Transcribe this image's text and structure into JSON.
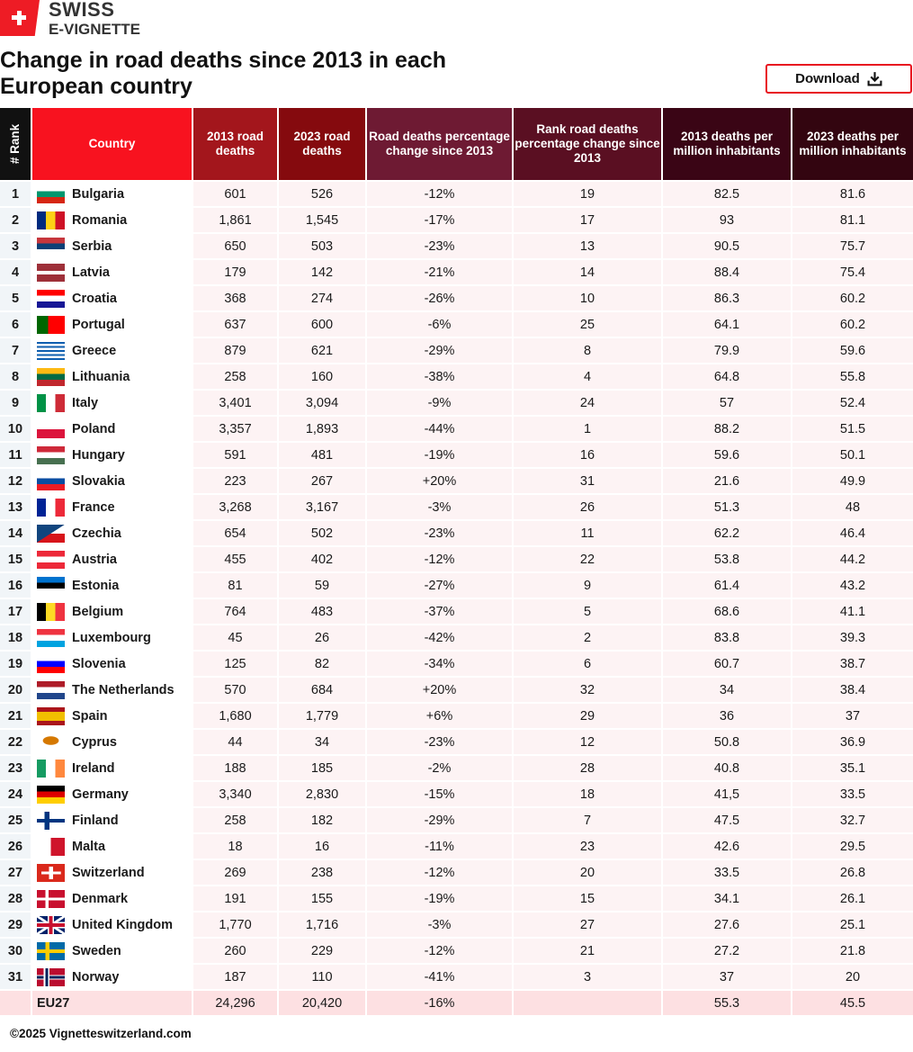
{
  "brand": {
    "line1": "SWISS",
    "line2": "E-VIGNETTE",
    "accent": "#ee1c25"
  },
  "title": "Change in road deaths since 2013 in each European country",
  "download_label": "Download",
  "headers": [
    "# Rank",
    "Country",
    "2013 road deaths",
    "2023 road deaths",
    "Road deaths percentage change since 2013",
    "Rank road deaths percentage change since 2013",
    "2013 deaths per million inhabitants",
    "2023 deaths per million inhabitants"
  ],
  "header_colors": [
    "#111111",
    "#f8121f",
    "#a3161c",
    "#850a0e",
    "#6e1a33",
    "#5a0f22",
    "#3a0515",
    "#330510"
  ],
  "rows": [
    [
      "1",
      "Bulgaria",
      "601",
      "526",
      "-12%",
      "19",
      "82.5",
      "81.6"
    ],
    [
      "2",
      "Romania",
      "1,861",
      "1,545",
      "-17%",
      "17",
      "93",
      "81.1"
    ],
    [
      "3",
      "Serbia",
      "650",
      "503",
      "-23%",
      "13",
      "90.5",
      "75.7"
    ],
    [
      "4",
      "Latvia",
      "179",
      "142",
      "-21%",
      "14",
      "88.4",
      "75.4"
    ],
    [
      "5",
      "Croatia",
      "368",
      "274",
      "-26%",
      "10",
      "86.3",
      "60.2"
    ],
    [
      "6",
      "Portugal",
      "637",
      "600",
      "-6%",
      "25",
      "64.1",
      "60.2"
    ],
    [
      "7",
      "Greece",
      "879",
      "621",
      "-29%",
      "8",
      "79.9",
      "59.6"
    ],
    [
      "8",
      "Lithuania",
      "258",
      "160",
      "-38%",
      "4",
      "64.8",
      "55.8"
    ],
    [
      "9",
      "Italy",
      "3,401",
      "3,094",
      "-9%",
      "24",
      "57",
      "52.4"
    ],
    [
      "10",
      "Poland",
      "3,357",
      "1,893",
      "-44%",
      "1",
      "88.2",
      "51.5"
    ],
    [
      "11",
      "Hungary",
      "591",
      "481",
      "-19%",
      "16",
      "59.6",
      "50.1"
    ],
    [
      "12",
      "Slovakia",
      "223",
      "267",
      "+20%",
      "31",
      "21.6",
      "49.9"
    ],
    [
      "13",
      "France",
      "3,268",
      "3,167",
      "-3%",
      "26",
      "51.3",
      "48"
    ],
    [
      "14",
      "Czechia",
      "654",
      "502",
      "-23%",
      "11",
      "62.2",
      "46.4"
    ],
    [
      "15",
      "Austria",
      "455",
      "402",
      "-12%",
      "22",
      "53.8",
      "44.2"
    ],
    [
      "16",
      "Estonia",
      "81",
      "59",
      "-27%",
      "9",
      "61.4",
      "43.2"
    ],
    [
      "17",
      "Belgium",
      "764",
      "483",
      "-37%",
      "5",
      "68.6",
      "41.1"
    ],
    [
      "18",
      "Luxembourg",
      "45",
      "26",
      "-42%",
      "2",
      "83.8",
      "39.3"
    ],
    [
      "19",
      "Slovenia",
      "125",
      "82",
      "-34%",
      "6",
      "60.7",
      "38.7"
    ],
    [
      "20",
      "The Netherlands",
      "570",
      "684",
      "+20%",
      "32",
      "34",
      "38.4"
    ],
    [
      "21",
      "Spain",
      "1,680",
      "1,779",
      "+6%",
      "29",
      "36",
      "37"
    ],
    [
      "22",
      "Cyprus",
      "44",
      "34",
      "-23%",
      "12",
      "50.8",
      "36.9"
    ],
    [
      "23",
      "Ireland",
      "188",
      "185",
      "-2%",
      "28",
      "40.8",
      "35.1"
    ],
    [
      "24",
      "Germany",
      "3,340",
      "2,830",
      "-15%",
      "18",
      "41,5",
      "33.5"
    ],
    [
      "25",
      "Finland",
      "258",
      "182",
      "-29%",
      "7",
      "47.5",
      "32.7"
    ],
    [
      "26",
      "Malta",
      "18",
      "16",
      "-11%",
      "23",
      "42.6",
      "29.5"
    ],
    [
      "27",
      "Switzerland",
      "269",
      "238",
      "-12%",
      "20",
      "33.5",
      "26.8"
    ],
    [
      "28",
      "Denmark",
      "191",
      "155",
      "-19%",
      "15",
      "34.1",
      "26.1"
    ],
    [
      "29",
      "United Kingdom",
      "1,770",
      "1,716",
      "-3%",
      "27",
      "27.6",
      "25.1"
    ],
    [
      "30",
      "Sweden",
      "260",
      "229",
      "-12%",
      "21",
      "27.2",
      "21.8"
    ],
    [
      "31",
      "Norway",
      "187",
      "110",
      "-41%",
      "3",
      "37",
      "20"
    ]
  ],
  "total": [
    "",
    "EU27",
    "24,296",
    "20,420",
    "-16%",
    "",
    "55.3",
    "45.5"
  ],
  "footer": "©2025 Vignetteswitzerland.com"
}
